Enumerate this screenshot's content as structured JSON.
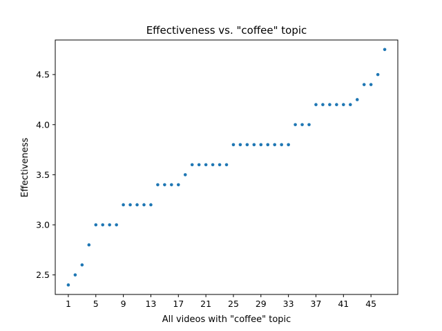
{
  "chart_data": {
    "type": "scatter",
    "title": "Effectiveness vs. \"coffee\" topic",
    "xlabel": "All videos with \"coffee\" topic",
    "ylabel": "Effectiveness",
    "xlim": [
      -0.9,
      48.9
    ],
    "ylim": [
      2.305,
      4.845
    ],
    "xticks": [
      1,
      5,
      9,
      13,
      17,
      21,
      25,
      29,
      33,
      37,
      41,
      45
    ],
    "yticks": [
      2.5,
      3.0,
      3.5,
      4.0,
      4.5
    ],
    "ytick_labels": [
      "2.5",
      "3.0",
      "3.5",
      "4.0",
      "4.5"
    ],
    "grid": false,
    "color": "#1f77b4",
    "x": [
      1,
      2,
      3,
      4,
      5,
      6,
      7,
      8,
      9,
      10,
      11,
      12,
      13,
      14,
      15,
      16,
      17,
      18,
      19,
      20,
      21,
      22,
      23,
      24,
      25,
      26,
      27,
      28,
      29,
      30,
      31,
      32,
      33,
      34,
      35,
      36,
      37,
      38,
      39,
      40,
      41,
      42,
      43,
      44,
      45,
      46,
      47
    ],
    "y": [
      2.4,
      2.5,
      2.6,
      2.8,
      3.0,
      3.0,
      3.0,
      3.0,
      3.2,
      3.2,
      3.2,
      3.2,
      3.2,
      3.4,
      3.4,
      3.4,
      3.4,
      3.5,
      3.6,
      3.6,
      3.6,
      3.6,
      3.6,
      3.6,
      3.8,
      3.8,
      3.8,
      3.8,
      3.8,
      3.8,
      3.8,
      3.8,
      3.8,
      4.0,
      4.0,
      4.0,
      4.2,
      4.2,
      4.2,
      4.2,
      4.2,
      4.2,
      4.25,
      4.4,
      4.4,
      4.5,
      4.75
    ]
  }
}
